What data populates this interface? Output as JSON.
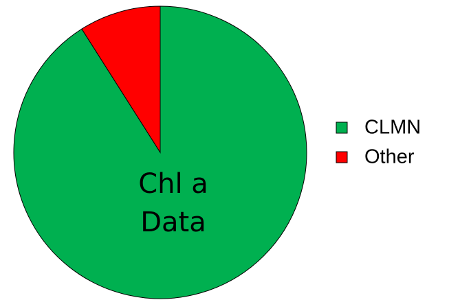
{
  "chart_data": {
    "type": "pie",
    "categories": [
      "CLMN",
      "Other"
    ],
    "values": [
      91,
      9
    ],
    "colors": [
      "#00b050",
      "#ff0000"
    ],
    "annotation": [
      "Chl a",
      "Data"
    ],
    "legend": "right"
  }
}
